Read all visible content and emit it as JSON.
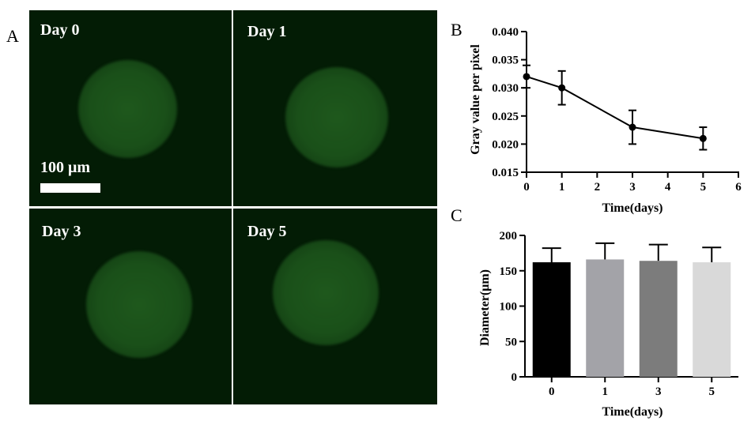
{
  "panels": {
    "a": "A",
    "b": "B",
    "c": "C"
  },
  "micrographs": [
    {
      "label": "Day 0"
    },
    {
      "label": "Day 1"
    },
    {
      "label": "Day 3"
    },
    {
      "label": "Day 5"
    }
  ],
  "scale_bar": {
    "label": "100 μm"
  },
  "chart_data": [
    {
      "type": "line",
      "panel": "B",
      "xlabel": "Time(days)",
      "ylabel": "Gray value per pixel",
      "xlim": [
        0,
        6
      ],
      "ylim": [
        0.015,
        0.04
      ],
      "xticks": [
        "0",
        "1",
        "2",
        "3",
        "4",
        "5",
        "6"
      ],
      "yticks": [
        "0.015",
        "0.020",
        "0.025",
        "0.030",
        "0.035",
        "0.040"
      ],
      "x": [
        0,
        1,
        3,
        5
      ],
      "y": [
        0.032,
        0.03,
        0.023,
        0.021
      ],
      "error": [
        0.002,
        0.003,
        0.003,
        0.002
      ],
      "color": "#000000"
    },
    {
      "type": "bar",
      "panel": "C",
      "xlabel": "Time(days)",
      "ylabel": "Diameter(μm)",
      "ylim": [
        0,
        200
      ],
      "yticks": [
        "0",
        "50",
        "100",
        "150",
        "200"
      ],
      "categories": [
        "0",
        "1",
        "3",
        "5"
      ],
      "values": [
        162,
        166,
        164,
        162
      ],
      "error": [
        20,
        23,
        23,
        21
      ],
      "colors": [
        "#000000",
        "#a3a3a8",
        "#7c7c7c",
        "#d9d9d9"
      ]
    }
  ]
}
